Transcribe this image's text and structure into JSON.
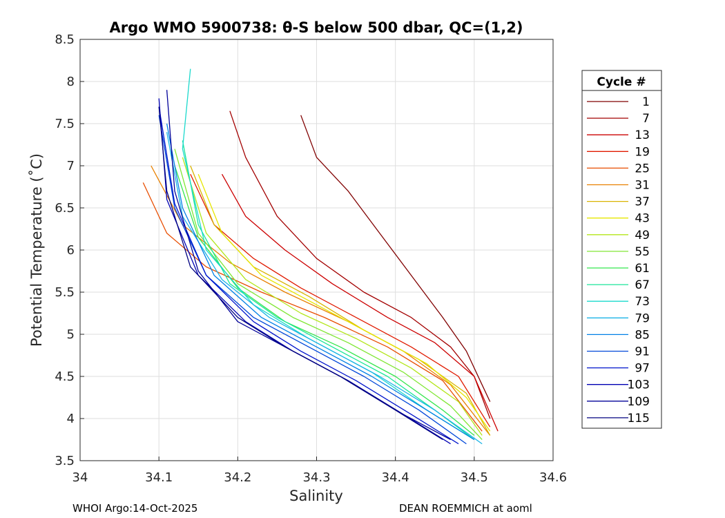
{
  "chart_data": {
    "type": "line",
    "title": "Argo WMO 5900738: θ-S below 500 dbar,  QC=(1,2)",
    "xlabel": "Salinity",
    "ylabel": "Potential Temperature (˚C)",
    "xlim": [
      34.0,
      34.6
    ],
    "ylim": [
      3.5,
      8.5
    ],
    "xticks": [
      34.0,
      34.1,
      34.2,
      34.3,
      34.4,
      34.5,
      34.6
    ],
    "xtick_labels": [
      "34",
      "34.1",
      "34.2",
      "34.3",
      "34.4",
      "34.5",
      "34.6"
    ],
    "yticks": [
      3.5,
      4.0,
      4.5,
      5.0,
      5.5,
      6.0,
      6.5,
      7.0,
      7.5,
      8.0,
      8.5
    ],
    "ytick_labels": [
      "3.5",
      "4",
      "4.5",
      "5",
      "5.5",
      "6",
      "6.5",
      "7",
      "7.5",
      "8",
      "8.5"
    ],
    "grid": true,
    "legend_title": "Cycle #",
    "legend_position": "right",
    "series": [
      {
        "name": "1",
        "color": "#800000",
        "x": [
          34.28,
          34.3,
          34.34,
          34.38,
          34.42,
          34.46,
          34.49,
          34.51,
          34.52
        ],
        "y": [
          7.6,
          7.1,
          6.7,
          6.2,
          5.7,
          5.2,
          4.8,
          4.4,
          4.2
        ]
      },
      {
        "name": "7",
        "color": "#a30000",
        "x": [
          34.19,
          34.21,
          34.25,
          34.3,
          34.36,
          34.42,
          34.47,
          34.5,
          34.52
        ],
        "y": [
          7.65,
          7.1,
          6.4,
          5.9,
          5.5,
          5.2,
          4.85,
          4.5,
          4.0
        ]
      },
      {
        "name": "13",
        "color": "#cc0000",
        "x": [
          34.18,
          34.21,
          34.26,
          34.32,
          34.39,
          34.45,
          34.5,
          34.53
        ],
        "y": [
          6.9,
          6.4,
          6.0,
          5.6,
          5.2,
          4.9,
          4.5,
          3.85
        ]
      },
      {
        "name": "19",
        "color": "#e01a00",
        "x": [
          34.14,
          34.17,
          34.22,
          34.28,
          34.35,
          34.42,
          34.48,
          34.52
        ],
        "y": [
          6.9,
          6.3,
          5.9,
          5.55,
          5.2,
          4.85,
          4.5,
          3.9
        ]
      },
      {
        "name": "25",
        "color": "#e84d00",
        "x": [
          34.08,
          34.11,
          34.16,
          34.23,
          34.31,
          34.39,
          34.46,
          34.51
        ],
        "y": [
          6.8,
          6.2,
          5.8,
          5.5,
          5.2,
          4.85,
          4.45,
          3.85
        ]
      },
      {
        "name": "31",
        "color": "#e88000",
        "x": [
          34.09,
          34.13,
          34.19,
          34.26,
          34.34,
          34.41,
          34.47,
          34.52
        ],
        "y": [
          7.0,
          6.3,
          5.85,
          5.5,
          5.15,
          4.8,
          4.4,
          3.8
        ]
      },
      {
        "name": "37",
        "color": "#d9b300",
        "x": [
          34.14,
          34.17,
          34.22,
          34.29,
          34.36,
          34.43,
          34.49,
          34.52
        ],
        "y": [
          7.0,
          6.3,
          5.8,
          5.45,
          5.05,
          4.7,
          4.3,
          3.8
        ]
      },
      {
        "name": "43",
        "color": "#e6e600",
        "x": [
          34.15,
          34.18,
          34.23,
          34.3,
          34.37,
          34.44,
          34.49,
          34.52
        ],
        "y": [
          6.9,
          6.2,
          5.7,
          5.35,
          5.0,
          4.65,
          4.25,
          3.85
        ]
      },
      {
        "name": "49",
        "color": "#b3e61a",
        "x": [
          34.13,
          34.16,
          34.21,
          34.28,
          34.35,
          34.42,
          34.48,
          34.51
        ],
        "y": [
          7.1,
          6.2,
          5.65,
          5.25,
          4.95,
          4.6,
          4.2,
          3.8
        ]
      },
      {
        "name": "55",
        "color": "#80e633",
        "x": [
          34.12,
          34.15,
          34.2,
          34.27,
          34.34,
          34.41,
          34.47,
          34.51
        ],
        "y": [
          7.2,
          6.2,
          5.6,
          5.2,
          4.9,
          4.55,
          4.15,
          3.75
        ]
      },
      {
        "name": "61",
        "color": "#33e64d",
        "x": [
          34.12,
          34.15,
          34.2,
          34.26,
          34.33,
          34.4,
          34.46,
          34.5
        ],
        "y": [
          7.0,
          6.15,
          5.55,
          5.15,
          4.85,
          4.5,
          4.1,
          3.8
        ]
      },
      {
        "name": "67",
        "color": "#1ae699",
        "x": [
          34.13,
          34.15,
          34.19,
          34.25,
          34.32,
          34.39,
          34.45,
          34.5
        ],
        "y": [
          7.3,
          6.3,
          5.6,
          5.2,
          4.85,
          4.5,
          4.1,
          3.75
        ]
      },
      {
        "name": "73",
        "color": "#1ad9cc",
        "x": [
          34.14,
          34.13,
          34.16,
          34.22,
          34.29,
          34.37,
          34.44,
          34.5
        ],
        "y": [
          8.15,
          7.2,
          6.0,
          5.35,
          4.95,
          4.55,
          4.1,
          3.75
        ]
      },
      {
        "name": "79",
        "color": "#1ab3e6",
        "x": [
          34.11,
          34.13,
          34.18,
          34.24,
          34.31,
          34.38,
          34.45,
          34.51
        ],
        "y": [
          7.4,
          6.4,
          5.65,
          5.2,
          4.85,
          4.5,
          4.1,
          3.7
        ]
      },
      {
        "name": "85",
        "color": "#0080e6",
        "x": [
          34.11,
          34.13,
          34.17,
          34.23,
          34.3,
          34.37,
          34.44,
          34.5
        ],
        "y": [
          7.5,
          6.5,
          5.7,
          5.2,
          4.85,
          4.5,
          4.1,
          3.75
        ]
      },
      {
        "name": "91",
        "color": "#0047d9",
        "x": [
          34.1,
          34.12,
          34.16,
          34.22,
          34.29,
          34.36,
          34.43,
          34.49
        ],
        "y": [
          7.6,
          6.5,
          5.7,
          5.2,
          4.85,
          4.5,
          4.1,
          3.7
        ]
      },
      {
        "name": "97",
        "color": "#0014cc",
        "x": [
          34.1,
          34.12,
          34.16,
          34.22,
          34.28,
          34.35,
          34.42,
          34.48
        ],
        "y": [
          7.7,
          6.55,
          5.7,
          5.15,
          4.8,
          4.45,
          4.05,
          3.7
        ]
      },
      {
        "name": "103",
        "color": "#0000b3",
        "x": [
          34.1,
          34.11,
          34.15,
          34.21,
          34.27,
          34.34,
          34.41,
          34.47
        ],
        "y": [
          7.8,
          6.6,
          5.7,
          5.15,
          4.8,
          4.45,
          4.05,
          3.7
        ]
      },
      {
        "name": "109",
        "color": "#000099",
        "x": [
          34.11,
          34.12,
          34.15,
          34.2,
          34.27,
          34.34,
          34.41,
          34.47
        ],
        "y": [
          7.9,
          6.7,
          5.75,
          5.15,
          4.8,
          4.45,
          4.05,
          3.75
        ]
      },
      {
        "name": "115",
        "color": "#000080",
        "x": [
          34.1,
          34.11,
          34.14,
          34.2,
          34.26,
          34.33,
          34.4,
          34.46
        ],
        "y": [
          7.7,
          6.7,
          5.8,
          5.2,
          4.85,
          4.5,
          4.1,
          3.75
        ]
      }
    ]
  },
  "footer": {
    "left": "WHOI Argo:14-Oct-2025",
    "right": "DEAN ROEMMICH at aoml"
  }
}
